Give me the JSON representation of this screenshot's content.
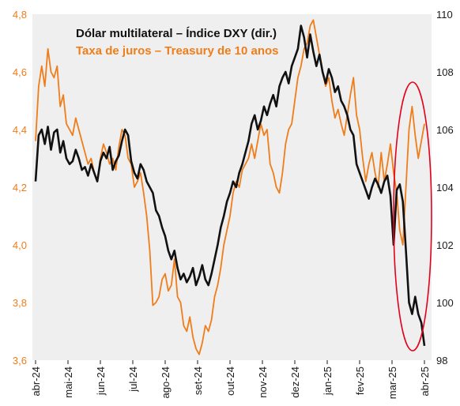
{
  "chart_data": {
    "type": "line",
    "title": "",
    "x_labels": [
      "abr-24",
      "mai-24",
      "jun-24",
      "jul-24",
      "ago-24",
      "set-24",
      "out-24",
      "nov-24",
      "dez-24",
      "jan-25",
      "fev-25",
      "mar-25",
      "abr-25"
    ],
    "left_axis": {
      "ylim": [
        3.6,
        4.8
      ],
      "ticks": [
        "3,6",
        "3,8",
        "4,0",
        "4,2",
        "4,4",
        "4,6",
        "4,8"
      ]
    },
    "right_axis": {
      "ylim": [
        98,
        110
      ],
      "ticks": [
        "98",
        "100",
        "102",
        "104",
        "106",
        "108",
        "110"
      ]
    },
    "legend": {
      "placement": "top-left"
    },
    "series": [
      {
        "name": "Dólar multilateral – Índice DXY (dir.)",
        "axis": "right",
        "color": "#111111",
        "values": [
          104.2,
          105.8,
          106.0,
          105.5,
          106.1,
          105.3,
          105.9,
          106.0,
          105.2,
          105.6,
          105.0,
          104.8,
          104.9,
          105.3,
          105.0,
          104.6,
          104.7,
          104.4,
          104.8,
          104.5,
          104.2,
          104.9,
          105.2,
          105.0,
          105.4,
          104.6,
          104.9,
          105.1,
          105.6,
          106.0,
          105.8,
          104.9,
          104.5,
          104.3,
          104.8,
          104.6,
          104.2,
          104.0,
          103.8,
          103.2,
          103.0,
          102.6,
          102.3,
          101.8,
          101.5,
          101.8,
          101.2,
          100.8,
          101.0,
          100.7,
          100.9,
          101.2,
          100.6,
          100.9,
          101.3,
          100.8,
          100.6,
          101.0,
          101.5,
          102.0,
          102.6,
          103.0,
          103.5,
          103.8,
          104.2,
          104.0,
          104.5,
          104.8,
          105.2,
          105.6,
          106.2,
          106.5,
          106.0,
          106.3,
          106.8,
          106.5,
          106.9,
          107.2,
          106.8,
          107.5,
          107.8,
          108.0,
          107.6,
          108.2,
          108.5,
          108.8,
          109.6,
          109.2,
          108.5,
          109.3,
          108.7,
          108.2,
          108.6,
          108.0,
          107.6,
          108.1,
          107.8,
          107.3,
          107.5,
          107.0,
          106.8,
          106.5,
          106.0,
          105.8,
          104.8,
          104.5,
          104.2,
          103.9,
          103.6,
          104.0,
          104.3,
          104.1,
          103.8,
          104.2,
          104.4,
          103.7,
          102.0,
          103.9,
          104.1,
          103.5,
          101.8,
          100.0,
          99.6,
          100.2,
          99.6,
          99.3,
          98.5
        ]
      },
      {
        "name": "Taxa de juros – Treasury de 10 anos",
        "axis": "left",
        "color": "#ef7d1a",
        "values": [
          4.36,
          4.55,
          4.62,
          4.55,
          4.68,
          4.6,
          4.58,
          4.62,
          4.48,
          4.52,
          4.42,
          4.4,
          4.38,
          4.44,
          4.4,
          4.36,
          4.32,
          4.28,
          4.3,
          4.25,
          4.22,
          4.3,
          4.35,
          4.32,
          4.28,
          4.3,
          4.26,
          4.34,
          4.4,
          4.38,
          4.3,
          4.28,
          4.2,
          4.22,
          4.25,
          4.18,
          4.1,
          3.98,
          3.79,
          3.8,
          3.82,
          3.88,
          3.9,
          3.84,
          3.86,
          3.95,
          3.82,
          3.8,
          3.72,
          3.7,
          3.75,
          3.68,
          3.64,
          3.62,
          3.66,
          3.72,
          3.7,
          3.74,
          3.82,
          3.86,
          3.92,
          4.0,
          4.05,
          4.1,
          4.18,
          4.22,
          4.2,
          4.26,
          4.28,
          4.3,
          4.35,
          4.3,
          4.36,
          4.42,
          4.38,
          4.4,
          4.28,
          4.25,
          4.2,
          4.18,
          4.25,
          4.35,
          4.4,
          4.42,
          4.5,
          4.58,
          4.62,
          4.68,
          4.7,
          4.76,
          4.78,
          4.72,
          4.66,
          4.6,
          4.55,
          4.58,
          4.5,
          4.44,
          4.47,
          4.42,
          4.38,
          4.45,
          4.52,
          4.58,
          4.45,
          4.4,
          4.3,
          4.22,
          4.28,
          4.32,
          4.25,
          4.2,
          4.32,
          4.22,
          4.28,
          4.35,
          4.25,
          4.18,
          4.05,
          4.0,
          4.2,
          4.4,
          4.48,
          4.38,
          4.3,
          4.36,
          4.42
        ]
      }
    ],
    "annotation": {
      "shape": "ellipse",
      "color": "#e3001b",
      "x_start": "mar-25",
      "x_end": "abr-25"
    },
    "grid": false,
    "plot_background": "#efefef"
  }
}
